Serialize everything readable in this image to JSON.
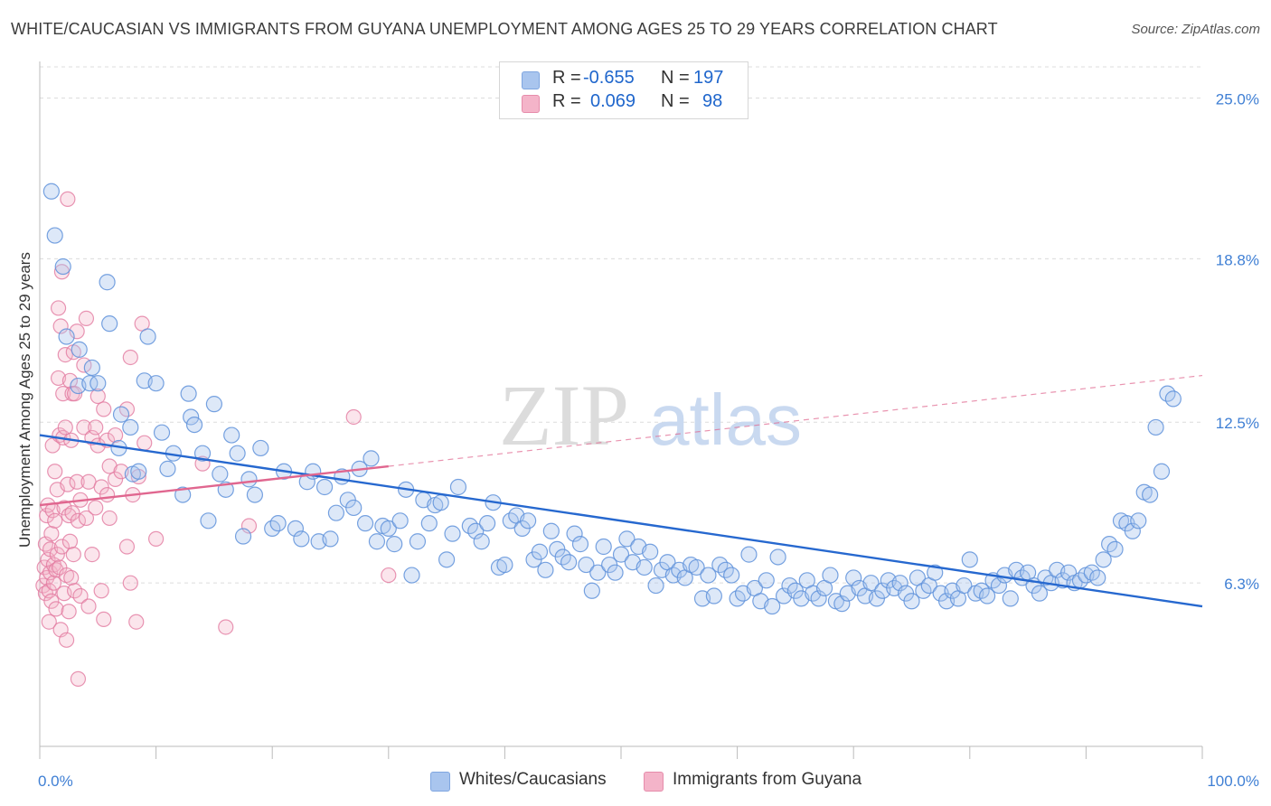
{
  "title": "WHITE/CAUCASIAN VS IMMIGRANTS FROM GUYANA UNEMPLOYMENT AMONG AGES 25 TO 29 YEARS CORRELATION CHART",
  "source": "Source: ZipAtlas.com",
  "watermark": {
    "zip": "ZIP",
    "atlas": "atlas"
  },
  "legend_top": {
    "rows": [
      {
        "r_label": "R =",
        "r_value": "-0.655",
        "n_label": "N =",
        "n_value": "197",
        "color": "#a9c5ee"
      },
      {
        "r_label": "R =",
        "r_value": "0.069",
        "n_label": "N =",
        "n_value": "98",
        "color": "#f4b4c9"
      }
    ]
  },
  "legend_bottom": {
    "items": [
      "Whites/Caucasians",
      "Immigrants from Guyana"
    ]
  },
  "chart_data": {
    "type": "scatter",
    "title": "WHITE/CAUCASIAN VS IMMIGRANTS FROM GUYANA UNEMPLOYMENT AMONG AGES 25 TO 29 YEARS CORRELATION CHART",
    "xlabel": "",
    "ylabel": "Unemployment Among Ages 25 to 29 years",
    "x_tick_labels": [
      "0.0%",
      "100.0%"
    ],
    "y_tick_labels": [
      "6.3%",
      "12.5%",
      "18.8%",
      "25.0%"
    ],
    "y_ticks": [
      6.3,
      12.5,
      18.8,
      25.0
    ],
    "xlim": [
      0,
      100
    ],
    "ylim": [
      0,
      26.2
    ],
    "grid": true,
    "legend_placement": "top-center",
    "colors": {
      "blue": "#a9c5ee",
      "blue_edge": "#5f92db",
      "blue_line": "#2668cf",
      "pink": "#f4b4c9",
      "pink_edge": "#e27aa0",
      "pink_line": "#e0668f"
    },
    "trend_lines": [
      {
        "series": "Whites/Caucasians",
        "x": [
          0,
          100
        ],
        "y": [
          12.0,
          5.4
        ],
        "style": "solid"
      },
      {
        "series": "Immigrants from Guyana",
        "x": [
          0,
          30
        ],
        "y": [
          9.3,
          10.8
        ],
        "style": "solid"
      },
      {
        "series": "Immigrants from Guyana",
        "x": [
          30,
          100
        ],
        "y": [
          10.8,
          14.3
        ],
        "style": "dashed"
      }
    ],
    "series": [
      {
        "name": "Whites/Caucasians",
        "points": [
          [
            1.0,
            21.4
          ],
          [
            1.3,
            19.7
          ],
          [
            2.0,
            18.5
          ],
          [
            2.3,
            15.8
          ],
          [
            3.3,
            13.9
          ],
          [
            3.4,
            15.3
          ],
          [
            4.3,
            14.0
          ],
          [
            4.5,
            14.6
          ],
          [
            5.0,
            14.0
          ],
          [
            5.8,
            17.9
          ],
          [
            6.0,
            16.3
          ],
          [
            6.8,
            11.5
          ],
          [
            7.0,
            12.8
          ],
          [
            7.8,
            12.3
          ],
          [
            8.0,
            10.5
          ],
          [
            8.5,
            10.6
          ],
          [
            9.0,
            14.1
          ],
          [
            9.3,
            15.8
          ],
          [
            10.0,
            14.0
          ],
          [
            10.5,
            12.1
          ],
          [
            11.0,
            10.7
          ],
          [
            11.5,
            11.3
          ],
          [
            12.3,
            9.7
          ],
          [
            12.8,
            13.6
          ],
          [
            13.0,
            12.7
          ],
          [
            13.3,
            12.4
          ],
          [
            14.0,
            11.3
          ],
          [
            14.5,
            8.7
          ],
          [
            15.0,
            13.2
          ],
          [
            15.5,
            10.5
          ],
          [
            16.0,
            9.9
          ],
          [
            16.5,
            12.0
          ],
          [
            17.0,
            11.3
          ],
          [
            17.5,
            8.1
          ],
          [
            18.0,
            10.3
          ],
          [
            18.5,
            9.7
          ],
          [
            19.0,
            11.5
          ],
          [
            20.0,
            8.4
          ],
          [
            20.5,
            8.6
          ],
          [
            21.0,
            10.6
          ],
          [
            22.0,
            8.4
          ],
          [
            22.5,
            8.0
          ],
          [
            23.0,
            10.2
          ],
          [
            23.5,
            10.6
          ],
          [
            24.0,
            7.9
          ],
          [
            24.5,
            10.0
          ],
          [
            25.0,
            8.0
          ],
          [
            25.5,
            9.0
          ],
          [
            26.0,
            10.4
          ],
          [
            26.5,
            9.5
          ],
          [
            27.0,
            9.2
          ],
          [
            27.5,
            10.7
          ],
          [
            28.0,
            8.6
          ],
          [
            28.5,
            11.1
          ],
          [
            29.0,
            7.9
          ],
          [
            29.5,
            8.5
          ],
          [
            30.0,
            8.4
          ],
          [
            30.5,
            7.8
          ],
          [
            31.0,
            8.7
          ],
          [
            31.5,
            9.9
          ],
          [
            32.0,
            6.6
          ],
          [
            32.5,
            7.9
          ],
          [
            33.0,
            9.5
          ],
          [
            33.5,
            8.6
          ],
          [
            34.0,
            9.3
          ],
          [
            34.5,
            9.4
          ],
          [
            35.0,
            7.2
          ],
          [
            35.5,
            8.2
          ],
          [
            36.0,
            10.0
          ],
          [
            37.0,
            8.5
          ],
          [
            37.5,
            8.3
          ],
          [
            38.0,
            7.9
          ],
          [
            38.5,
            8.6
          ],
          [
            39.0,
            9.4
          ],
          [
            39.5,
            6.9
          ],
          [
            40.0,
            7.0
          ],
          [
            40.5,
            8.7
          ],
          [
            41.0,
            8.9
          ],
          [
            41.5,
            8.4
          ],
          [
            42.0,
            8.7
          ],
          [
            42.5,
            7.2
          ],
          [
            43.0,
            7.5
          ],
          [
            43.5,
            6.8
          ],
          [
            44.0,
            8.3
          ],
          [
            44.5,
            7.6
          ],
          [
            45.0,
            7.3
          ],
          [
            45.5,
            7.1
          ],
          [
            46.0,
            8.2
          ],
          [
            46.5,
            7.8
          ],
          [
            47.0,
            7.0
          ],
          [
            47.5,
            6.0
          ],
          [
            48.0,
            6.7
          ],
          [
            48.5,
            7.7
          ],
          [
            49.0,
            7.0
          ],
          [
            49.5,
            6.7
          ],
          [
            50.0,
            7.4
          ],
          [
            50.5,
            8.0
          ],
          [
            51.0,
            7.1
          ],
          [
            51.5,
            7.7
          ],
          [
            52.0,
            6.9
          ],
          [
            52.5,
            7.5
          ],
          [
            53.0,
            6.2
          ],
          [
            53.5,
            6.8
          ],
          [
            54.0,
            7.1
          ],
          [
            54.5,
            6.6
          ],
          [
            55.0,
            6.8
          ],
          [
            55.5,
            6.5
          ],
          [
            56.0,
            7.0
          ],
          [
            56.5,
            6.9
          ],
          [
            57.0,
            5.7
          ],
          [
            57.5,
            6.6
          ],
          [
            58.0,
            5.8
          ],
          [
            58.5,
            7.0
          ],
          [
            59.0,
            6.8
          ],
          [
            59.5,
            6.6
          ],
          [
            60.0,
            5.7
          ],
          [
            60.5,
            5.9
          ],
          [
            61.0,
            7.4
          ],
          [
            61.5,
            6.1
          ],
          [
            62.0,
            5.6
          ],
          [
            62.5,
            6.4
          ],
          [
            63.0,
            5.4
          ],
          [
            63.5,
            7.3
          ],
          [
            64.0,
            5.8
          ],
          [
            64.5,
            6.2
          ],
          [
            65.0,
            6.0
          ],
          [
            65.5,
            5.7
          ],
          [
            66.0,
            6.4
          ],
          [
            66.5,
            5.9
          ],
          [
            67.0,
            5.7
          ],
          [
            67.5,
            6.1
          ],
          [
            68.0,
            6.6
          ],
          [
            68.5,
            5.6
          ],
          [
            69.0,
            5.5
          ],
          [
            69.5,
            5.9
          ],
          [
            70.0,
            6.5
          ],
          [
            70.5,
            6.1
          ],
          [
            71.0,
            5.8
          ],
          [
            71.5,
            6.3
          ],
          [
            72.0,
            5.7
          ],
          [
            72.5,
            6.0
          ],
          [
            73.0,
            6.4
          ],
          [
            73.5,
            6.1
          ],
          [
            74.0,
            6.3
          ],
          [
            74.5,
            5.9
          ],
          [
            75.0,
            5.6
          ],
          [
            75.5,
            6.5
          ],
          [
            76.0,
            6.0
          ],
          [
            76.5,
            6.2
          ],
          [
            77.0,
            6.7
          ],
          [
            77.5,
            5.9
          ],
          [
            78.0,
            5.6
          ],
          [
            78.5,
            6.0
          ],
          [
            79.0,
            5.7
          ],
          [
            79.5,
            6.2
          ],
          [
            80.0,
            7.2
          ],
          [
            80.5,
            5.9
          ],
          [
            81.0,
            6.0
          ],
          [
            81.5,
            5.8
          ],
          [
            82.0,
            6.4
          ],
          [
            82.5,
            6.2
          ],
          [
            83.0,
            6.6
          ],
          [
            83.5,
            5.7
          ],
          [
            84.0,
            6.8
          ],
          [
            84.5,
            6.5
          ],
          [
            85.0,
            6.7
          ],
          [
            85.5,
            6.2
          ],
          [
            86.0,
            5.9
          ],
          [
            86.5,
            6.5
          ],
          [
            87.0,
            6.3
          ],
          [
            87.5,
            6.8
          ],
          [
            88.0,
            6.4
          ],
          [
            88.5,
            6.7
          ],
          [
            89.0,
            6.3
          ],
          [
            89.5,
            6.4
          ],
          [
            90.0,
            6.6
          ],
          [
            90.5,
            6.7
          ],
          [
            91.0,
            6.5
          ],
          [
            91.5,
            7.2
          ],
          [
            92.0,
            7.8
          ],
          [
            92.5,
            7.6
          ],
          [
            93.0,
            8.7
          ],
          [
            93.5,
            8.6
          ],
          [
            94.0,
            8.3
          ],
          [
            94.5,
            8.7
          ],
          [
            95.0,
            9.8
          ],
          [
            95.5,
            9.7
          ],
          [
            96.0,
            12.3
          ],
          [
            96.5,
            10.6
          ],
          [
            97.0,
            13.6
          ],
          [
            97.5,
            13.4
          ]
        ]
      },
      {
        "name": "Immigrants from Guyana",
        "points": [
          [
            0.3,
            6.2
          ],
          [
            0.4,
            6.9
          ],
          [
            0.5,
            7.8
          ],
          [
            0.5,
            5.9
          ],
          [
            0.6,
            8.9
          ],
          [
            0.6,
            6.5
          ],
          [
            0.7,
            9.3
          ],
          [
            0.7,
            7.2
          ],
          [
            0.8,
            6.0
          ],
          [
            0.8,
            4.8
          ],
          [
            0.9,
            7.6
          ],
          [
            0.9,
            6.7
          ],
          [
            1.0,
            8.2
          ],
          [
            1.0,
            5.6
          ],
          [
            1.1,
            11.6
          ],
          [
            1.1,
            9.1
          ],
          [
            1.2,
            7.0
          ],
          [
            1.2,
            6.3
          ],
          [
            1.3,
            10.6
          ],
          [
            1.3,
            8.7
          ],
          [
            1.4,
            6.8
          ],
          [
            1.4,
            5.3
          ],
          [
            1.5,
            9.9
          ],
          [
            1.5,
            7.4
          ],
          [
            1.6,
            16.9
          ],
          [
            1.6,
            14.2
          ],
          [
            1.7,
            12.0
          ],
          [
            1.7,
            6.9
          ],
          [
            1.8,
            16.2
          ],
          [
            1.8,
            4.5
          ],
          [
            1.9,
            18.3
          ],
          [
            1.9,
            7.7
          ],
          [
            2.0,
            13.6
          ],
          [
            2.0,
            11.9
          ],
          [
            2.1,
            9.2
          ],
          [
            2.1,
            5.9
          ],
          [
            2.2,
            15.1
          ],
          [
            2.2,
            12.3
          ],
          [
            2.3,
            6.6
          ],
          [
            2.3,
            4.1
          ],
          [
            2.4,
            21.1
          ],
          [
            2.4,
            10.1
          ],
          [
            2.5,
            8.9
          ],
          [
            2.5,
            5.2
          ],
          [
            2.6,
            14.1
          ],
          [
            2.6,
            7.9
          ],
          [
            2.7,
            11.8
          ],
          [
            2.7,
            6.5
          ],
          [
            2.8,
            13.6
          ],
          [
            2.8,
            9.0
          ],
          [
            2.9,
            15.2
          ],
          [
            2.9,
            7.4
          ],
          [
            3.0,
            13.6
          ],
          [
            3.0,
            6.0
          ],
          [
            3.2,
            16.0
          ],
          [
            3.2,
            10.2
          ],
          [
            3.3,
            8.7
          ],
          [
            3.3,
            2.6
          ],
          [
            3.5,
            9.5
          ],
          [
            3.5,
            5.8
          ],
          [
            3.8,
            14.7
          ],
          [
            3.8,
            12.3
          ],
          [
            4.0,
            16.5
          ],
          [
            4.0,
            8.8
          ],
          [
            4.2,
            10.2
          ],
          [
            4.2,
            5.4
          ],
          [
            4.5,
            11.9
          ],
          [
            4.5,
            7.4
          ],
          [
            4.8,
            12.3
          ],
          [
            4.8,
            9.2
          ],
          [
            5.0,
            13.5
          ],
          [
            5.0,
            11.6
          ],
          [
            5.3,
            10.0
          ],
          [
            5.3,
            6.0
          ],
          [
            5.5,
            13.0
          ],
          [
            5.5,
            4.9
          ],
          [
            5.8,
            11.8
          ],
          [
            5.8,
            9.7
          ],
          [
            6.0,
            10.8
          ],
          [
            6.0,
            8.8
          ],
          [
            6.5,
            12.0
          ],
          [
            6.5,
            10.3
          ],
          [
            7.0,
            10.6
          ],
          [
            7.5,
            13.0
          ],
          [
            7.5,
            7.7
          ],
          [
            7.8,
            15.0
          ],
          [
            7.8,
            6.3
          ],
          [
            8.0,
            9.7
          ],
          [
            8.3,
            4.8
          ],
          [
            8.5,
            10.4
          ],
          [
            8.8,
            16.3
          ],
          [
            9.0,
            11.7
          ],
          [
            14.0,
            10.9
          ],
          [
            16.0,
            4.6
          ],
          [
            18.0,
            8.5
          ],
          [
            27.0,
            12.7
          ],
          [
            30.0,
            6.6
          ],
          [
            10.0,
            8.0
          ]
        ]
      }
    ]
  }
}
